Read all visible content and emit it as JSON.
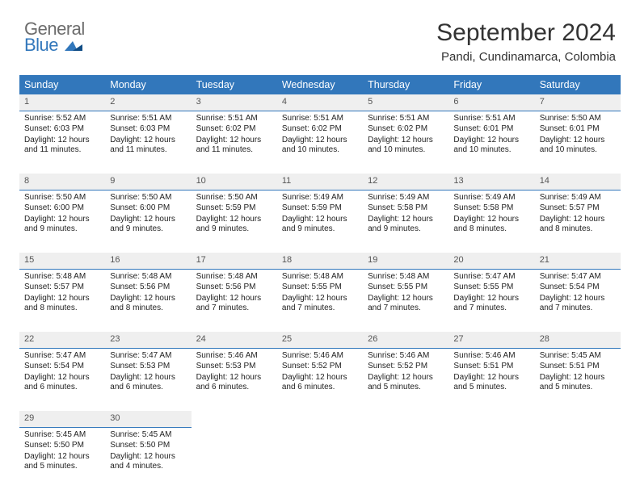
{
  "logo": {
    "line1": "General",
    "line2": "Blue"
  },
  "title": "September 2024",
  "location": "Pandi, Cundinamarca, Colombia",
  "colors": {
    "header_bg": "#3277bb",
    "header_fg": "#ffffff",
    "daybar_bg": "#efefef",
    "daybar_border": "#3277bb",
    "text": "#222222",
    "logo_gray": "#6c6c6c",
    "logo_blue": "#3277bb"
  },
  "fontsizes": {
    "title": 30,
    "subtitle": 15,
    "header": 12.5,
    "daynum": 11,
    "body": 10
  },
  "weekdays": [
    "Sunday",
    "Monday",
    "Tuesday",
    "Wednesday",
    "Thursday",
    "Friday",
    "Saturday"
  ],
  "weeks": [
    [
      {
        "d": "1",
        "sr": "5:52 AM",
        "ss": "6:03 PM",
        "dl": "12 hours and 11 minutes."
      },
      {
        "d": "2",
        "sr": "5:51 AM",
        "ss": "6:03 PM",
        "dl": "12 hours and 11 minutes."
      },
      {
        "d": "3",
        "sr": "5:51 AM",
        "ss": "6:02 PM",
        "dl": "12 hours and 11 minutes."
      },
      {
        "d": "4",
        "sr": "5:51 AM",
        "ss": "6:02 PM",
        "dl": "12 hours and 10 minutes."
      },
      {
        "d": "5",
        "sr": "5:51 AM",
        "ss": "6:02 PM",
        "dl": "12 hours and 10 minutes."
      },
      {
        "d": "6",
        "sr": "5:51 AM",
        "ss": "6:01 PM",
        "dl": "12 hours and 10 minutes."
      },
      {
        "d": "7",
        "sr": "5:50 AM",
        "ss": "6:01 PM",
        "dl": "12 hours and 10 minutes."
      }
    ],
    [
      {
        "d": "8",
        "sr": "5:50 AM",
        "ss": "6:00 PM",
        "dl": "12 hours and 9 minutes."
      },
      {
        "d": "9",
        "sr": "5:50 AM",
        "ss": "6:00 PM",
        "dl": "12 hours and 9 minutes."
      },
      {
        "d": "10",
        "sr": "5:50 AM",
        "ss": "5:59 PM",
        "dl": "12 hours and 9 minutes."
      },
      {
        "d": "11",
        "sr": "5:49 AM",
        "ss": "5:59 PM",
        "dl": "12 hours and 9 minutes."
      },
      {
        "d": "12",
        "sr": "5:49 AM",
        "ss": "5:58 PM",
        "dl": "12 hours and 9 minutes."
      },
      {
        "d": "13",
        "sr": "5:49 AM",
        "ss": "5:58 PM",
        "dl": "12 hours and 8 minutes."
      },
      {
        "d": "14",
        "sr": "5:49 AM",
        "ss": "5:57 PM",
        "dl": "12 hours and 8 minutes."
      }
    ],
    [
      {
        "d": "15",
        "sr": "5:48 AM",
        "ss": "5:57 PM",
        "dl": "12 hours and 8 minutes."
      },
      {
        "d": "16",
        "sr": "5:48 AM",
        "ss": "5:56 PM",
        "dl": "12 hours and 8 minutes."
      },
      {
        "d": "17",
        "sr": "5:48 AM",
        "ss": "5:56 PM",
        "dl": "12 hours and 7 minutes."
      },
      {
        "d": "18",
        "sr": "5:48 AM",
        "ss": "5:55 PM",
        "dl": "12 hours and 7 minutes."
      },
      {
        "d": "19",
        "sr": "5:48 AM",
        "ss": "5:55 PM",
        "dl": "12 hours and 7 minutes."
      },
      {
        "d": "20",
        "sr": "5:47 AM",
        "ss": "5:55 PM",
        "dl": "12 hours and 7 minutes."
      },
      {
        "d": "21",
        "sr": "5:47 AM",
        "ss": "5:54 PM",
        "dl": "12 hours and 7 minutes."
      }
    ],
    [
      {
        "d": "22",
        "sr": "5:47 AM",
        "ss": "5:54 PM",
        "dl": "12 hours and 6 minutes."
      },
      {
        "d": "23",
        "sr": "5:47 AM",
        "ss": "5:53 PM",
        "dl": "12 hours and 6 minutes."
      },
      {
        "d": "24",
        "sr": "5:46 AM",
        "ss": "5:53 PM",
        "dl": "12 hours and 6 minutes."
      },
      {
        "d": "25",
        "sr": "5:46 AM",
        "ss": "5:52 PM",
        "dl": "12 hours and 6 minutes."
      },
      {
        "d": "26",
        "sr": "5:46 AM",
        "ss": "5:52 PM",
        "dl": "12 hours and 5 minutes."
      },
      {
        "d": "27",
        "sr": "5:46 AM",
        "ss": "5:51 PM",
        "dl": "12 hours and 5 minutes."
      },
      {
        "d": "28",
        "sr": "5:45 AM",
        "ss": "5:51 PM",
        "dl": "12 hours and 5 minutes."
      }
    ],
    [
      {
        "d": "29",
        "sr": "5:45 AM",
        "ss": "5:50 PM",
        "dl": "12 hours and 5 minutes."
      },
      {
        "d": "30",
        "sr": "5:45 AM",
        "ss": "5:50 PM",
        "dl": "12 hours and 4 minutes."
      },
      null,
      null,
      null,
      null,
      null
    ]
  ],
  "labels": {
    "sunrise": "Sunrise:",
    "sunset": "Sunset:",
    "daylight": "Daylight:"
  }
}
